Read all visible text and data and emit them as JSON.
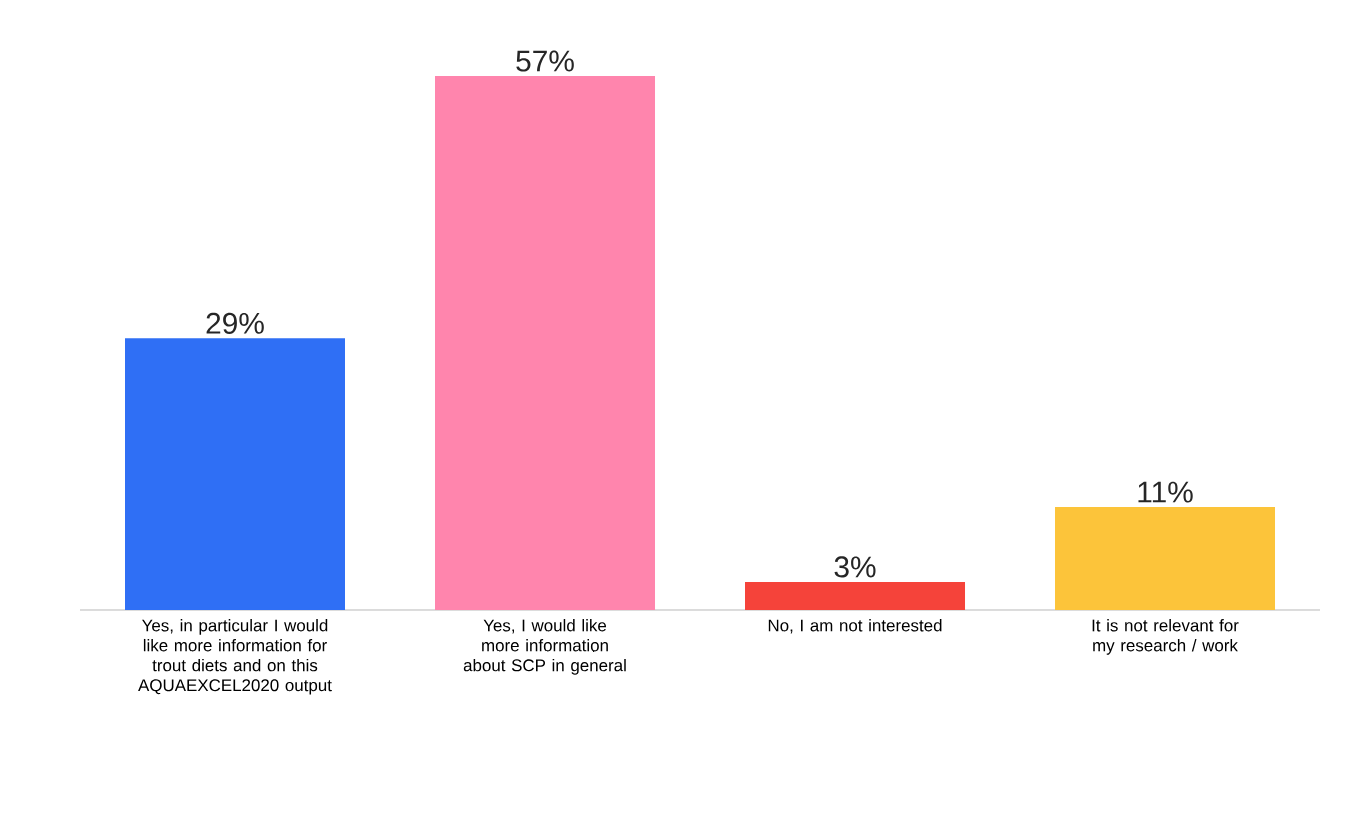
{
  "chart_data": {
    "type": "bar",
    "categories": [
      "Yes, in particular I would like more information for trout diets and on this AQUAEXCEL2020 output",
      "Yes, I would like more information about SCP in general",
      "No, I am not interested",
      "It is not relevant for my research / work"
    ],
    "values": [
      29,
      57,
      3,
      11
    ],
    "colors": [
      "#2f6ff5",
      "#ff85ad",
      "#f5433a",
      "#fcc43a"
    ],
    "value_labels": [
      "29%",
      "57%",
      "3%",
      "11%"
    ]
  }
}
